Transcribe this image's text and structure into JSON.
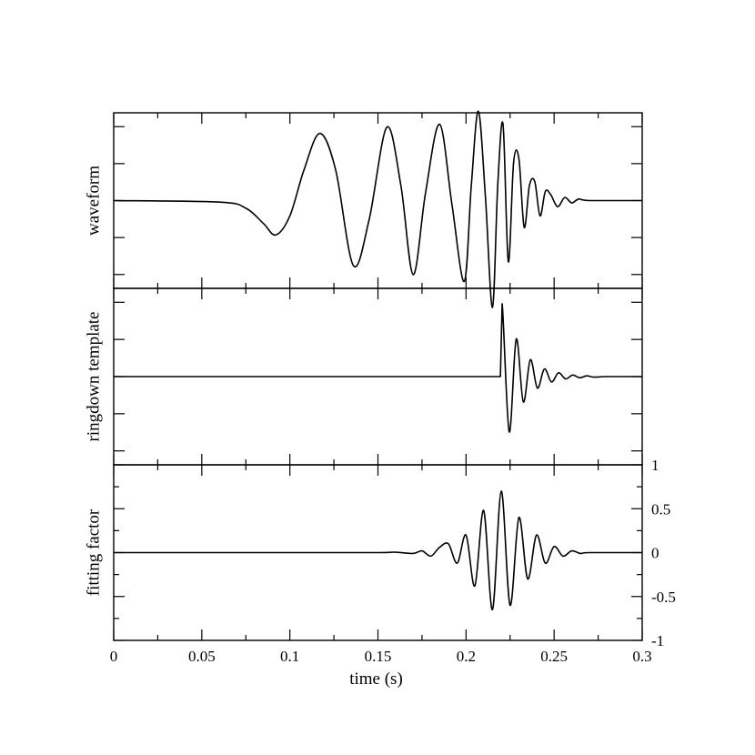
{
  "chart_data": {
    "type": "line",
    "xlabel": "time (s)",
    "xlim": [
      0,
      0.3
    ],
    "x_ticks": [
      0,
      0.05,
      0.1,
      0.15,
      0.2,
      0.25,
      0.3
    ],
    "x_tick_labels": [
      "0",
      "0.05",
      "0.1",
      "0.15",
      "0.2",
      "0.25",
      "0.3"
    ],
    "grid": false,
    "panels": [
      {
        "ylabel": "waveform",
        "ylim": [
          -1.15,
          1.15
        ],
        "y_ticks_shown": false,
        "series": [
          {
            "x": [
              0,
              0.06,
              0.075,
              0.085,
              0.092,
              0.1,
              0.108,
              0.117,
              0.126,
              0.136,
              0.145,
              0.155,
              0.163,
              0.17,
              0.177,
              0.185,
              0.192,
              0.199,
              0.203,
              0.207,
              0.211,
              0.215,
              0.218,
              0.221,
              0.224,
              0.227,
              0.23,
              0.233,
              0.236,
              0.239,
              0.242,
              0.245,
              0.248,
              0.252,
              0.256,
              0.26,
              0.264,
              0.27,
              0.3
            ],
            "y": [
              0,
              -0.02,
              -0.1,
              -0.3,
              -0.45,
              -0.2,
              0.4,
              0.88,
              0.4,
              -0.85,
              -0.25,
              0.96,
              0.2,
              -0.97,
              0.1,
              1.0,
              -0.05,
              -1.06,
              0.2,
              1.17,
              0.05,
              -1.4,
              0.2,
              1.0,
              -0.8,
              0.5,
              0.55,
              -0.35,
              0.2,
              0.25,
              -0.2,
              0.12,
              0.08,
              -0.08,
              0.04,
              -0.03,
              0.02,
              0,
              0
            ]
          }
        ]
      },
      {
        "ylabel": "ringdown template",
        "ylim": [
          -1.15,
          1.15
        ],
        "y_ticks_shown": false,
        "series": [
          {
            "x": [
              0,
              0.2195,
              0.2205,
              0.2245,
              0.2285,
              0.2325,
              0.2365,
              0.2405,
              0.2445,
              0.2485,
              0.2525,
              0.2565,
              0.2605,
              0.2645,
              0.2685,
              0.2725,
              0.28,
              0.3
            ],
            "y": [
              0,
              0,
              0.95,
              -0.72,
              0.49,
              -0.33,
              0.22,
              -0.15,
              0.1,
              -0.07,
              0.05,
              -0.03,
              0.02,
              -0.015,
              0.01,
              -0.007,
              0,
              0
            ]
          }
        ]
      },
      {
        "ylabel": "fitting factor",
        "ylim": [
          -1,
          1
        ],
        "y_ticks": [
          -1,
          -0.5,
          0,
          0.5,
          1
        ],
        "y_tick_labels": [
          "-1",
          "-0.5",
          "0",
          "0.5",
          "1"
        ],
        "series": [
          {
            "x": [
              0,
              0.1,
              0.15,
              0.16,
              0.17,
              0.175,
              0.18,
              0.185,
              0.19,
              0.195,
              0.2,
              0.205,
              0.21,
              0.215,
              0.22,
              0.225,
              0.23,
              0.235,
              0.24,
              0.245,
              0.25,
              0.255,
              0.26,
              0.265,
              0.27,
              0.3
            ],
            "y": [
              0,
              0,
              0,
              0.005,
              -0.01,
              0.02,
              -0.04,
              0.06,
              0.1,
              -0.12,
              0.2,
              -0.38,
              0.48,
              -0.65,
              0.7,
              -0.6,
              0.4,
              -0.3,
              0.2,
              -0.12,
              0.07,
              -0.04,
              0.02,
              -0.01,
              0,
              0
            ]
          }
        ]
      }
    ]
  }
}
